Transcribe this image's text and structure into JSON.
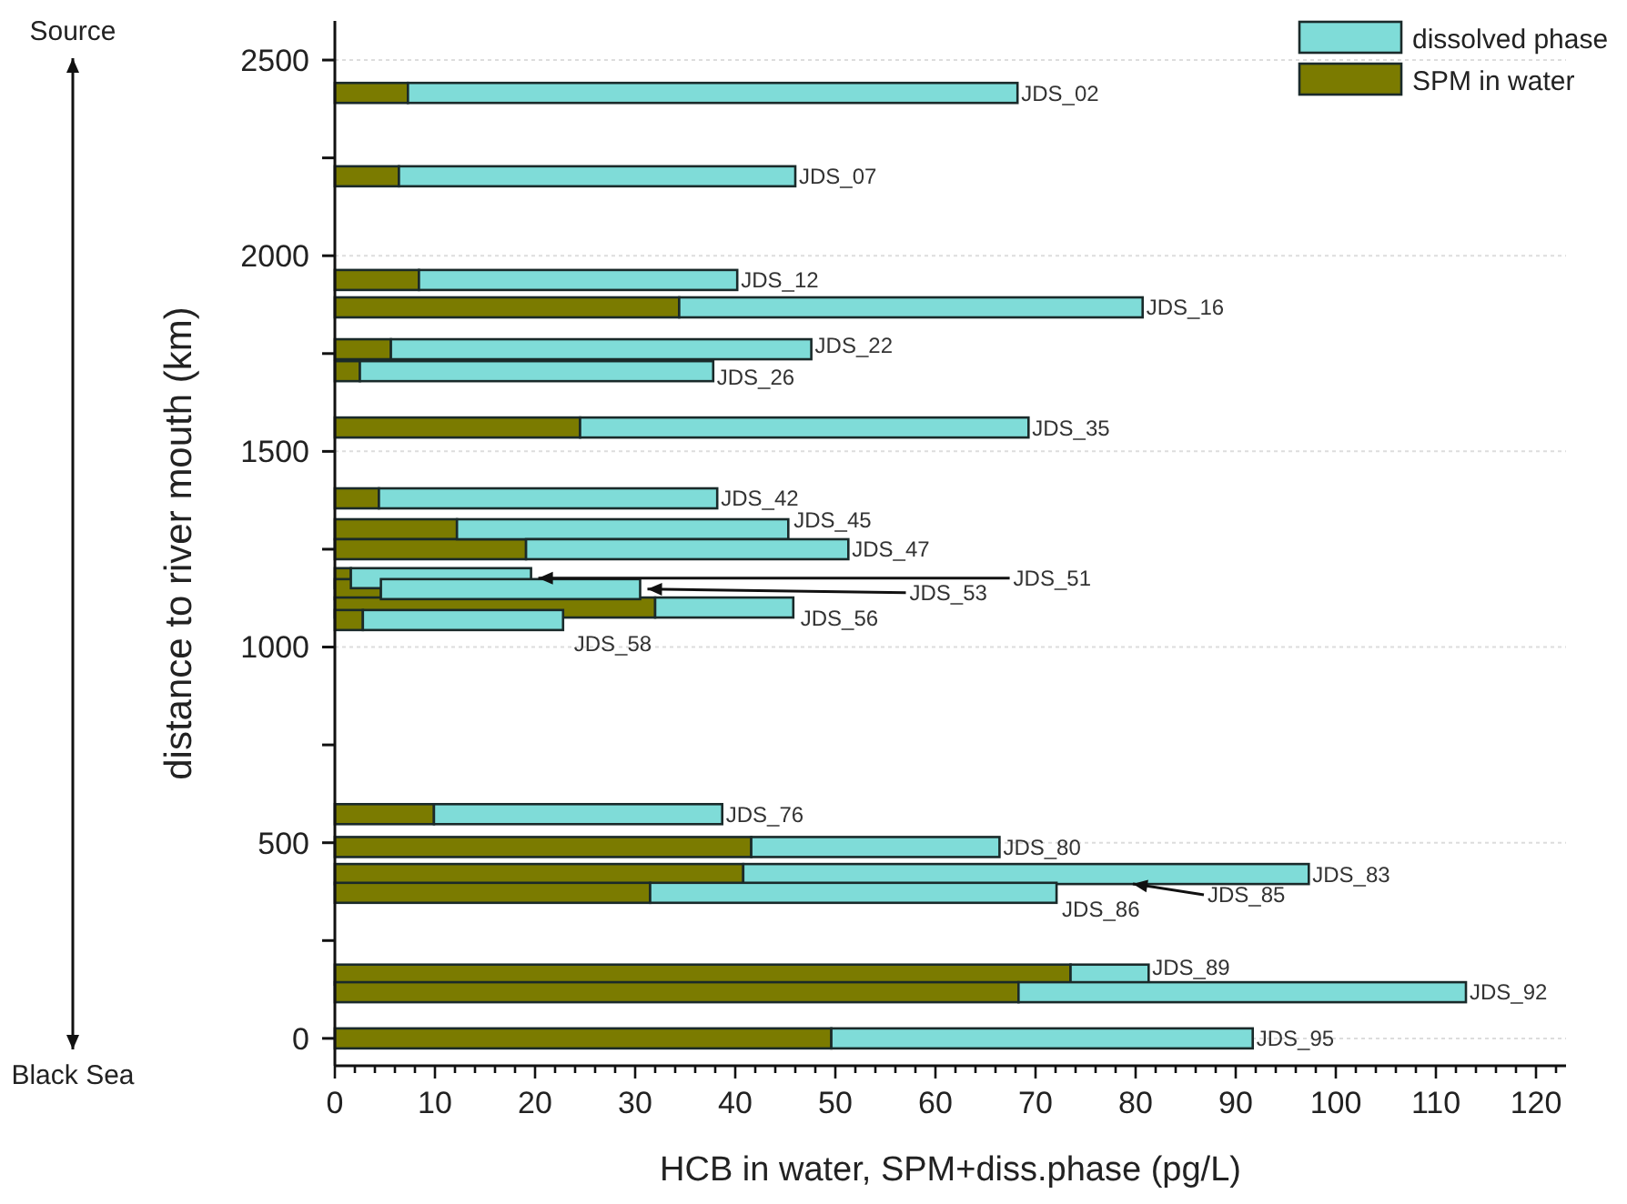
{
  "chart_data": {
    "type": "bar",
    "orientation": "horizontal",
    "stacked": true,
    "xlabel": "HCB in water, SPM+diss.phase (pg/L)",
    "ylabel": "distance to river mouth (km)",
    "x": [
      2416,
      2203,
      1938,
      1868,
      1761,
      1705,
      1561,
      1380,
      1301,
      1250,
      1176,
      1148,
      1101,
      1069,
      573,
      489,
      420,
      372,
      163,
      118,
      0
    ],
    "series": [
      {
        "name": "SPM in water",
        "color": "#7b7b00",
        "values": [
          7.3,
          6.4,
          8.4,
          34.4,
          5.6,
          2.5,
          24.5,
          4.4,
          12.2,
          19.1,
          1.6,
          4.6,
          32,
          2.8,
          9.9,
          41.6,
          40.8,
          31.5,
          73.5,
          68.3,
          49.6
        ]
      },
      {
        "name": "dissolved phase",
        "color": "#7fdcd8",
        "values": [
          60.9,
          39.6,
          31.8,
          46.3,
          42,
          35.3,
          44.8,
          33.8,
          33.1,
          32.2,
          18,
          25.9,
          13.8,
          20,
          28.8,
          24.8,
          56.5,
          40.6,
          7.8,
          44.7,
          42.1
        ]
      }
    ],
    "xlim": [
      0,
      123
    ],
    "xticks": [
      0,
      {
        "value": 2,
        "label": null
      },
      {
        "value": 4,
        "label": null
      },
      {
        "value": 6,
        "label": null
      },
      {
        "value": 8,
        "label": null
      },
      10,
      {
        "value": 12,
        "label": null
      },
      {
        "value": 14,
        "label": null
      },
      {
        "value": 16,
        "label": null
      },
      {
        "value": 18,
        "label": null
      },
      20,
      {
        "value": 22,
        "label": null
      },
      {
        "value": 24,
        "label": null
      },
      {
        "value": 26,
        "label": null
      },
      {
        "value": 28,
        "label": null
      },
      30,
      {
        "value": 32,
        "label": null
      },
      {
        "value": 34,
        "label": null
      },
      {
        "value": 36,
        "label": null
      },
      {
        "value": 38,
        "label": null
      },
      40,
      {
        "value": 42,
        "label": null
      },
      {
        "value": 44,
        "label": null
      },
      {
        "value": 46,
        "label": null
      },
      {
        "value": 48,
        "label": null
      },
      50,
      {
        "value": 52,
        "label": null
      },
      {
        "value": 54,
        "label": null
      },
      {
        "value": 56,
        "label": null
      },
      {
        "value": 58,
        "label": null
      },
      60,
      {
        "value": 62,
        "label": null
      },
      {
        "value": 64,
        "label": null
      },
      {
        "value": 66,
        "label": null
      },
      {
        "value": 68,
        "label": null
      },
      70,
      {
        "value": 72,
        "label": null
      },
      {
        "value": 74,
        "label": null
      },
      {
        "value": 76,
        "label": null
      },
      {
        "value": 78,
        "label": null
      },
      80,
      {
        "value": 82,
        "label": null
      },
      {
        "value": 84,
        "label": null
      },
      {
        "value": 86,
        "label": null
      },
      {
        "value": 88,
        "label": null
      },
      90,
      {
        "value": 92,
        "label": null
      },
      {
        "value": 94,
        "label": null
      },
      {
        "value": 96,
        "label": null
      },
      {
        "value": 98,
        "label": null
      },
      100,
      {
        "value": 102,
        "label": null
      },
      {
        "value": 104,
        "label": null
      },
      {
        "value": 106,
        "label": null
      },
      {
        "value": 108,
        "label": null
      },
      110,
      {
        "value": 112,
        "label": null
      },
      {
        "value": 114,
        "label": null
      },
      {
        "value": 116,
        "label": null
      },
      {
        "value": 118,
        "label": null
      },
      120,
      {
        "value": 122,
        "label": null
      }
    ],
    "ylim": [
      -70,
      2600
    ],
    "yticks": [
      0,
      {
        "value": 250,
        "label": null
      },
      500,
      {
        "value": 750,
        "label": null
      },
      1000,
      {
        "value": 1250,
        "label": null
      },
      1500,
      {
        "value": 1750,
        "label": null
      },
      2000,
      {
        "value": 2250,
        "label": null
      },
      2500
    ],
    "grid": "y",
    "legend": "top right",
    "annotations": [
      "Source",
      "Black Sea",
      {
        "text": "JDS_02",
        "x": 68.2,
        "y": 2416
      },
      {
        "text": "JDS_07",
        "x": 46,
        "y": 2203
      },
      {
        "text": "JDS_12",
        "x": 40.2,
        "y": 1938
      },
      {
        "text": "JDS_16",
        "x": 80.7,
        "y": 1868
      },
      {
        "text": "JDS_22",
        "x": 47.6,
        "y": 1761
      },
      {
        "text": "JDS_26",
        "x": 37.8,
        "y": 1705
      },
      {
        "text": "JDS_35",
        "x": 69.3,
        "y": 1561
      },
      {
        "text": "JDS_42",
        "x": 38.2,
        "y": 1380
      },
      {
        "text": "JDS_45",
        "x": 45.3,
        "y": 1301
      },
      {
        "text": "JDS_47",
        "x": 51.3,
        "y": 1250
      },
      {
        "text": "JDS_51",
        "x": 19.6,
        "y": 1176
      },
      {
        "text": "JDS_53",
        "x": 30.5,
        "y": 1148
      },
      {
        "text": "JDS_56",
        "x": 45.8,
        "y": 1101
      },
      {
        "text": "JDS_58",
        "x": 22.8,
        "y": 1069
      },
      {
        "text": "JDS_76",
        "x": 38.7,
        "y": 573
      },
      {
        "text": "JDS_80",
        "x": 66.4,
        "y": 489
      },
      {
        "text": "JDS_83",
        "x": 97.3,
        "y": 420
      },
      {
        "text": "JDS_85",
        "x": 79,
        "y": 395
      },
      {
        "text": "JDS_86",
        "x": 72.1,
        "y": 372
      },
      {
        "text": "JDS_89",
        "x": 81.3,
        "y": 163
      },
      {
        "text": "JDS_92",
        "x": 113,
        "y": 118
      },
      {
        "text": "JDS_95",
        "x": 91.7,
        "y": 0
      }
    ]
  }
}
